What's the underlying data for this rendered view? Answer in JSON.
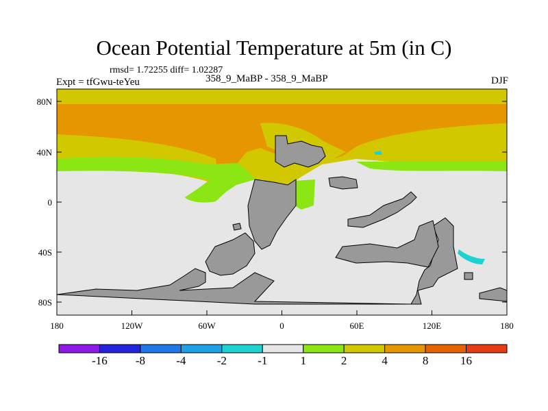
{
  "title": "Ocean Potential Temperature at 5m (in C)",
  "stats": "rmsd= 1.72255  diff= 1.02287",
  "experiment": "Expt = tfGwu-teYeu",
  "runs": "358_9_MaBP - 358_9_MaBP",
  "season": "DJF",
  "y_ticks": [
    "80N",
    "40N",
    "0",
    "40S",
    "80S"
  ],
  "x_ticks": [
    "180",
    "120W",
    "60W",
    "0",
    "60E",
    "120E",
    "180"
  ],
  "colorbar": {
    "colors": [
      "#8f1ae6",
      "#2323dc",
      "#1e78e6",
      "#1ea0e6",
      "#1ed2d2",
      "#e6e6e6",
      "#8ce614",
      "#d2c800",
      "#e69600",
      "#e66400",
      "#e63c14"
    ],
    "labels": [
      "-16",
      "-8",
      "-4",
      "-2",
      "-1",
      "1",
      "2",
      "4",
      "8",
      "16"
    ]
  },
  "colors": {
    "land": "#999999",
    "neutral": "#e6e6e6",
    "warm_2_4": "#d2c800",
    "warm_4_8": "#e69600",
    "warm_1_2": "#8ce614"
  }
}
